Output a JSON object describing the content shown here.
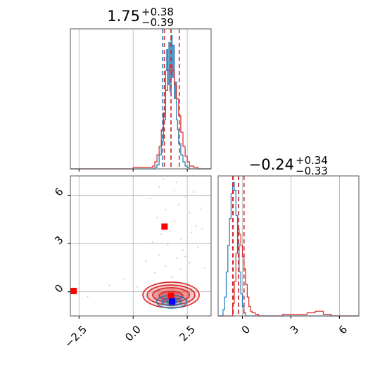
{
  "colors": {
    "blue": "#1f77b4",
    "red": "#d62728",
    "marker_red": "#ff0000",
    "marker_blue": "#0000ff",
    "grid": "#b0b0b0",
    "pink_points": "#f2c4cf"
  },
  "chart_data": [
    {
      "id": "hist_x",
      "type": "histogram",
      "panel": "top-left",
      "title": {
        "median": "1.75",
        "plus": "+0.38",
        "minus": "−0.39"
      },
      "xlim": [
        -2.9,
        3.6
      ],
      "grid": true,
      "series": [
        {
          "color": "blue",
          "edges": [
            -2.9,
            1.0,
            1.1,
            1.2,
            1.3,
            1.4,
            1.5,
            1.55,
            1.6,
            1.65,
            1.7,
            1.75,
            1.8,
            1.85,
            1.9,
            1.95,
            2.0,
            2.05,
            2.1,
            2.2,
            2.3,
            2.4,
            2.5,
            2.6,
            3.6
          ],
          "values": [
            0,
            1,
            3,
            10,
            20,
            35,
            70,
            85,
            60,
            90,
            55,
            95,
            65,
            88,
            50,
            62,
            35,
            28,
            18,
            10,
            5,
            2,
            1,
            0
          ],
          "quantiles": [
            1.36,
            1.75,
            2.13
          ]
        },
        {
          "color": "red",
          "edges": [
            -2.9,
            0.0,
            0.9,
            1.0,
            1.1,
            1.2,
            1.3,
            1.4,
            1.5,
            1.6,
            1.7,
            1.8,
            1.9,
            2.0,
            2.1,
            2.2,
            2.3,
            2.4,
            2.5,
            2.6,
            2.8,
            3.0,
            3.6
          ],
          "values": [
            0,
            1,
            2,
            5,
            10,
            16,
            28,
            40,
            56,
            70,
            74,
            70,
            60,
            50,
            38,
            26,
            16,
            9,
            5,
            2,
            1,
            0
          ],
          "quantiles": [
            1.44,
            1.75,
            2.13
          ]
        }
      ]
    },
    {
      "id": "hist_y",
      "type": "histogram",
      "panel": "bottom-right",
      "title": {
        "median": "−0.24",
        "plus": "+0.34",
        "minus": "−0.33"
      },
      "xlim": [
        -1.5,
        7.2
      ],
      "xticks": [
        "0",
        "3",
        "6"
      ],
      "xtick_values": [
        0,
        3,
        6
      ],
      "grid": true,
      "series": [
        {
          "color": "blue",
          "edges": [
            -1.5,
            -1.2,
            -1.1,
            -1.0,
            -0.9,
            -0.8,
            -0.7,
            -0.6,
            -0.5,
            -0.4,
            -0.3,
            -0.2,
            -0.1,
            0.0,
            0.1,
            0.2,
            7.2
          ],
          "values": [
            0,
            4,
            12,
            28,
            45,
            62,
            78,
            85,
            80,
            64,
            46,
            28,
            14,
            6,
            2,
            0
          ],
          "quantiles": [
            -0.57,
            -0.24,
            0.1
          ]
        },
        {
          "color": "red",
          "edges": [
            -1.5,
            -0.6,
            -0.5,
            -0.4,
            -0.3,
            -0.2,
            -0.1,
            0.0,
            0.1,
            0.2,
            0.3,
            0.4,
            0.5,
            0.6,
            0.8,
            1.0,
            2.5,
            3.0,
            4.0,
            4.5,
            5.0,
            5.5,
            7.2
          ],
          "values": [
            0,
            8,
            22,
            40,
            55,
            52,
            45,
            38,
            30,
            20,
            12,
            6,
            3,
            2,
            1,
            0,
            1,
            1,
            2,
            3,
            1,
            0
          ],
          "quantiles": [
            -0.6,
            -0.24,
            0.1
          ]
        }
      ]
    },
    {
      "id": "joint",
      "type": "contour-scatter",
      "panel": "bottom-left",
      "xlim": [
        -2.9,
        3.6
      ],
      "ylim": [
        -1.5,
        7.2
      ],
      "xticks": [
        "−2.5",
        "0.0",
        "2.5"
      ],
      "xtick_values": [
        -2.5,
        0.0,
        2.5
      ],
      "yticks": [
        "0",
        "3",
        "6"
      ],
      "ytick_values": [
        0,
        3,
        6
      ],
      "grid": true,
      "markers": [
        {
          "color": "marker_red",
          "x": 1.45,
          "y": 4.05
        },
        {
          "color": "marker_red",
          "x": -2.75,
          "y": 0.05
        },
        {
          "color": "marker_red",
          "x": 1.75,
          "y": -0.24
        },
        {
          "color": "marker_blue",
          "x": 1.8,
          "y": -0.6
        }
      ],
      "red_contours": [
        {
          "cx": 1.75,
          "cy": -0.2,
          "rx": 1.3,
          "ry": 0.8,
          "fill": 0.2
        },
        {
          "cx": 1.75,
          "cy": -0.2,
          "rx": 1.1,
          "ry": 0.62,
          "fill": 0.3
        },
        {
          "cx": 1.75,
          "cy": -0.2,
          "rx": 0.85,
          "ry": 0.45,
          "fill": 0.45
        },
        {
          "cx": 1.75,
          "cy": -0.25,
          "rx": 0.55,
          "ry": 0.28,
          "fill": 0.65
        }
      ],
      "blue_contours": [
        {
          "cx": 1.78,
          "cy": -0.62,
          "rx": 0.7,
          "ry": 0.4,
          "fill": 0.15
        },
        {
          "cx": 1.78,
          "cy": -0.62,
          "rx": 0.45,
          "ry": 0.25,
          "fill": 0.35
        },
        {
          "cx": 1.78,
          "cy": -0.62,
          "rx": 0.22,
          "ry": 0.12,
          "fill": 0.6
        }
      ],
      "pink_points": [
        [
          1.2,
          6.5
        ],
        [
          1.9,
          6.3
        ],
        [
          2.4,
          5.9
        ],
        [
          2.8,
          6.2
        ],
        [
          2.1,
          5.4
        ],
        [
          1.5,
          5.1
        ],
        [
          2.6,
          4.9
        ],
        [
          3.1,
          5.2
        ],
        [
          1.1,
          4.6
        ],
        [
          1.9,
          4.4
        ],
        [
          2.9,
          4.1
        ],
        [
          1.3,
          3.6
        ],
        [
          2.2,
          3.3
        ],
        [
          2.7,
          3.7
        ],
        [
          0.9,
          3.1
        ],
        [
          1.6,
          2.9
        ],
        [
          2.3,
          2.6
        ],
        [
          3.0,
          2.8
        ],
        [
          1.2,
          2.3
        ],
        [
          2.0,
          2.1
        ],
        [
          2.6,
          1.8
        ],
        [
          1.5,
          1.6
        ],
        [
          2.2,
          1.4
        ],
        [
          1.0,
          1.2
        ],
        [
          1.8,
          0.9
        ],
        [
          2.5,
          1.0
        ],
        [
          0.6,
          1.9
        ],
        [
          3.3,
          1.5
        ],
        [
          -0.4,
          0.8
        ],
        [
          -1.1,
          0.4
        ],
        [
          0.2,
          0.3
        ],
        [
          -2.1,
          -0.3
        ],
        [
          1.4,
          7.0
        ],
        [
          2.0,
          6.8
        ],
        [
          0.8,
          5.8
        ],
        [
          3.2,
          3.9
        ],
        [
          1.7,
          3.8
        ],
        [
          2.4,
          2.2
        ]
      ]
    }
  ]
}
